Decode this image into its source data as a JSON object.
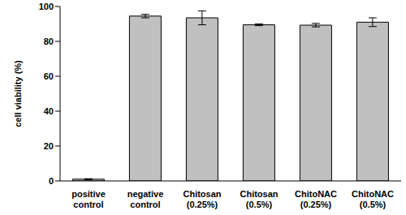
{
  "chart_data": {
    "type": "bar",
    "categories": [
      "positive control",
      "negative control",
      "Chitosan (0.25%)",
      "Chitosan (0.5%)",
      "ChitoNAC (0.25%)",
      "ChitoNAC (0.5%)"
    ],
    "values": [
      1,
      94.5,
      93.5,
      89.5,
      89.3,
      91
    ],
    "errors": [
      0.3,
      1,
      4,
      0.5,
      1,
      2.5
    ],
    "color": "#c0c0c0",
    "y_label": "cell viability (%)",
    "ylim": [
      0,
      100
    ],
    "yticks": [
      0,
      20,
      40,
      60,
      80,
      100
    ],
    "grid": false
  }
}
